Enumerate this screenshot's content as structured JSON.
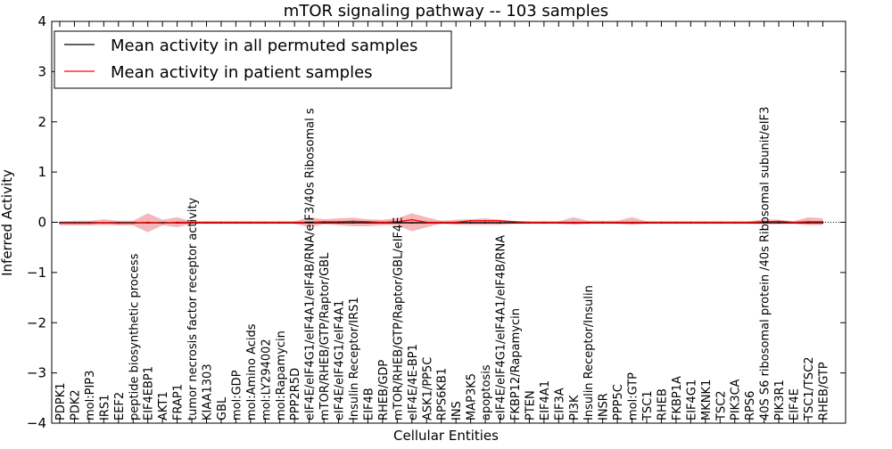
{
  "chart_data": {
    "type": "line",
    "title": "mTOR signaling pathway -- 103 samples",
    "xlabel": "Cellular Entities",
    "ylabel": "Inferred Activity",
    "ylim": [
      -4,
      4
    ],
    "yticks": [
      4,
      3,
      2,
      1,
      0,
      -1,
      -2,
      -3,
      -4
    ],
    "ytick_labels": [
      "4",
      "3",
      "2",
      "1",
      "0",
      "−1",
      "−2",
      "−3",
      "−4"
    ],
    "grid": false,
    "legend_position": "top-left",
    "categories": [
      "PDPK1",
      "PDK2",
      "mol:PIP3",
      "IRS1",
      "EEF2",
      "peptide biosynthetic process",
      "EIF4EBP1",
      "AKT1",
      "FRAP1",
      "tumor necrosis factor receptor activity",
      "KIAA1303",
      "GBL",
      "mol:GDP",
      "mol:Amino Acids",
      "mol:LY294002",
      "mol:Rapamycin",
      "PPP2R5D",
      "eIF4E/eIF4G1/eIF4A1/eIF4B/RNA/eIF3/40s Ribosomal s",
      "mTOR/RHEB/GTP/Raptor/GBL",
      "eIF4E/eIF4G1/eIF4A1",
      "Insulin Receptor/IRS1",
      "EIF4B",
      "RHEB/GDP",
      "mTOR/RHEB/GTP/Raptor/GBL/eIF4E",
      "eIF4E/4E-BP1",
      "ASK1/PP5C",
      "RPS6KB1",
      "INS",
      "MAP3K5",
      "apoptosis",
      "eIF4E/eIF4G1/eIF4A1/eIF4B/RNA",
      "FKBP12/Rapamycin",
      "PTEN",
      "EIF4A1",
      "EIF3A",
      "PI3K",
      "Insulin Receptor/Insulin",
      "INSR",
      "PPP5C",
      "mol:GTP",
      "TSC1",
      "RHEB",
      "FKBP1A",
      "EIF4G1",
      "MKNK1",
      "TSC2",
      "PIK3CA",
      "RPS6",
      "40S S6 ribosomal protein /40s Ribosomal subunit/eIF3",
      "PIK3R1",
      "EIF4E",
      "TSC1/TSC2",
      "RHEB/GTP"
    ],
    "series": [
      {
        "name": "Mean activity in all permuted samples",
        "color": "#000000",
        "values": [
          -0.01,
          -0.01,
          -0.01,
          -0.01,
          -0.01,
          -0.01,
          -0.01,
          -0.01,
          -0.01,
          -0.01,
          -0.01,
          -0.01,
          -0.01,
          -0.01,
          -0.01,
          -0.01,
          -0.01,
          -0.01,
          -0.01,
          -0.01,
          -0.01,
          -0.01,
          -0.01,
          -0.01,
          -0.01,
          -0.01,
          -0.01,
          -0.01,
          -0.01,
          -0.01,
          -0.01,
          -0.01,
          -0.01,
          -0.01,
          -0.01,
          -0.01,
          -0.01,
          -0.01,
          -0.01,
          -0.01,
          -0.01,
          -0.01,
          -0.01,
          -0.01,
          -0.01,
          -0.01,
          -0.01,
          -0.01,
          -0.01,
          -0.01,
          -0.01,
          -0.01,
          -0.01
        ]
      },
      {
        "name": "Mean activity in patient samples",
        "color": "#ff0000",
        "values": [
          -0.02,
          -0.02,
          -0.02,
          -0.01,
          -0.02,
          -0.02,
          0.0,
          -0.02,
          0.0,
          0.0,
          0.0,
          0.0,
          0.0,
          0.0,
          0.0,
          0.0,
          0.0,
          0.0,
          0.01,
          0.01,
          0.02,
          0.01,
          0.0,
          0.01,
          0.05,
          0.0,
          0.0,
          0.0,
          0.03,
          0.03,
          0.03,
          0.01,
          0.0,
          0.0,
          0.0,
          0.0,
          0.0,
          0.0,
          0.0,
          0.0,
          0.0,
          0.0,
          0.0,
          0.0,
          0.0,
          0.0,
          0.0,
          0.0,
          0.01,
          0.02,
          0.0,
          0.01,
          0.01
        ],
        "band_upper": [
          0.02,
          0.03,
          0.03,
          0.06,
          0.03,
          0.03,
          0.18,
          0.05,
          0.1,
          0.02,
          0.02,
          0.02,
          0.02,
          0.02,
          0.02,
          0.02,
          0.02,
          0.1,
          0.06,
          0.08,
          0.09,
          0.06,
          0.05,
          0.08,
          0.18,
          0.1,
          0.03,
          0.05,
          0.06,
          0.08,
          0.05,
          0.02,
          0.02,
          0.02,
          0.02,
          0.1,
          0.03,
          0.03,
          0.03,
          0.1,
          0.02,
          0.02,
          0.02,
          0.02,
          0.02,
          0.02,
          0.02,
          0.02,
          0.06,
          0.05,
          0.02,
          0.1,
          0.08
        ],
        "band_lower": [
          -0.06,
          -0.06,
          -0.06,
          -0.06,
          -0.06,
          -0.06,
          -0.2,
          -0.06,
          -0.1,
          -0.03,
          -0.03,
          -0.03,
          -0.03,
          -0.03,
          -0.03,
          -0.03,
          -0.03,
          -0.1,
          -0.04,
          -0.06,
          -0.08,
          -0.08,
          -0.06,
          -0.06,
          -0.18,
          -0.1,
          -0.03,
          -0.05,
          -0.05,
          -0.05,
          -0.05,
          -0.03,
          -0.03,
          -0.03,
          -0.03,
          -0.05,
          -0.03,
          -0.03,
          -0.03,
          -0.05,
          -0.03,
          -0.03,
          -0.03,
          -0.03,
          -0.03,
          -0.03,
          -0.03,
          -0.03,
          -0.04,
          -0.04,
          -0.03,
          -0.06,
          -0.06
        ]
      }
    ]
  }
}
